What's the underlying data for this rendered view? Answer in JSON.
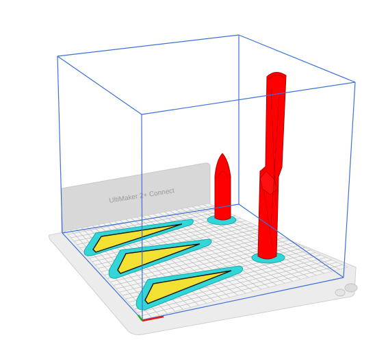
{
  "viewport": {
    "machine_name": "UltiMaker 2+ Connect",
    "colors": {
      "background": "#ffffff",
      "build_volume_edge": "#3a6fd8",
      "build_plate": "#e4e4e4",
      "plate_grid": "#b8b8b8",
      "backplate": "#d6d6d6",
      "model_red": "#ff0000",
      "model_shadow": "#c00000",
      "support_cyan": "#33d6d6",
      "infill_yellow": "#f2e033",
      "axis_x": "#e01818",
      "axis_y": "#1fa81f"
    },
    "objects": [
      {
        "kind": "wedge-slice",
        "name": "wedge-1"
      },
      {
        "kind": "wedge-slice",
        "name": "wedge-2"
      },
      {
        "kind": "wedge-slice",
        "name": "wedge-3"
      },
      {
        "kind": "cone-slice",
        "name": "small-cone"
      },
      {
        "kind": "tall-cylinder-slice",
        "name": "tall-tower"
      }
    ]
  }
}
